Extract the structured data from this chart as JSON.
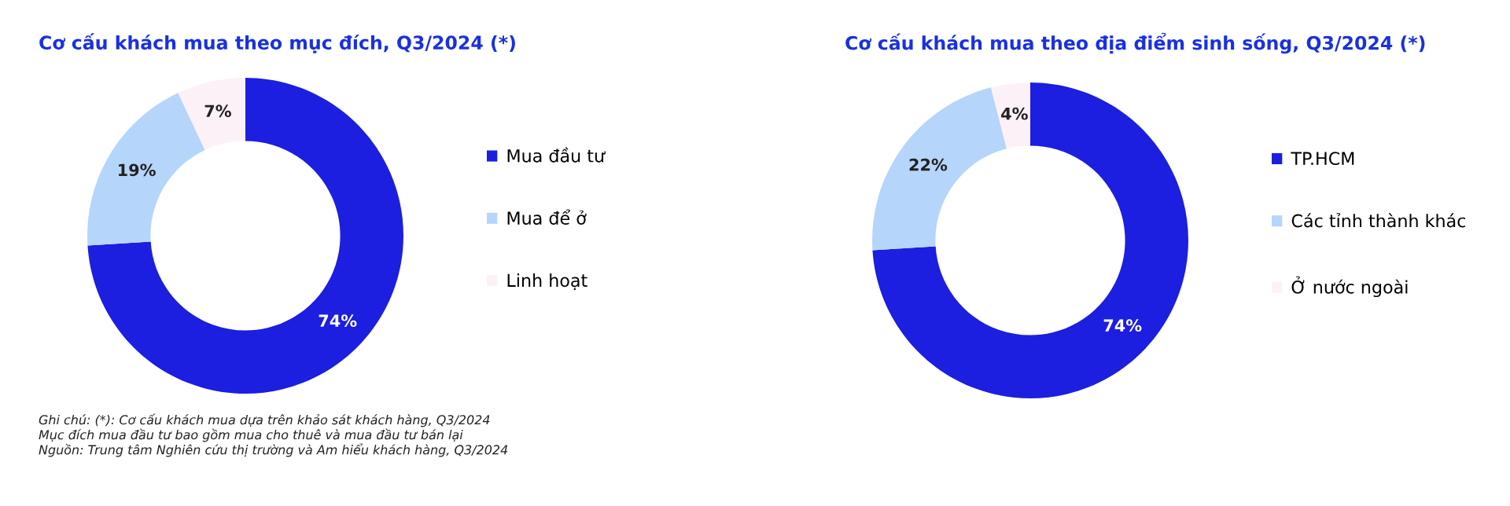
{
  "chart_data": [
    {
      "type": "donut",
      "title": "Cơ cấu khách mua theo mục đích, Q3/2024 (*)",
      "categories": [
        "Mua đầu tư",
        "Mua để ở",
        "Linh hoạt"
      ],
      "values": [
        74,
        19,
        7
      ],
      "value_labels": [
        "74%",
        "19%",
        "7%"
      ],
      "colors": [
        "#1c1ee0",
        "#b5d5fb",
        "#fdf1f8"
      ],
      "legend": "right",
      "annotations": [
        "Ghi chú: (*): Cơ cấu khách mua dựa trên khảo sát khách hàng, Q3/2024",
        "Mục đích mua đầu tư bao gồm mua cho thuê và mua đầu tư bán lại",
        "Nguồn: Trung tâm Nghiên cứu thị trường và Am hiểu khách hàng, Q3/2024"
      ]
    },
    {
      "type": "donut",
      "title": "Cơ cấu khách mua theo địa điểm sinh sống, Q3/2024 (*)",
      "categories": [
        "TP.HCM",
        "Các tỉnh thành khác",
        "Ở nước ngoài"
      ],
      "values": [
        74,
        22,
        4
      ],
      "value_labels": [
        "74%",
        "22%",
        "4%"
      ],
      "colors": [
        "#1c1ee0",
        "#b5d5fb",
        "#fdf1f8"
      ],
      "legend": "right"
    }
  ]
}
